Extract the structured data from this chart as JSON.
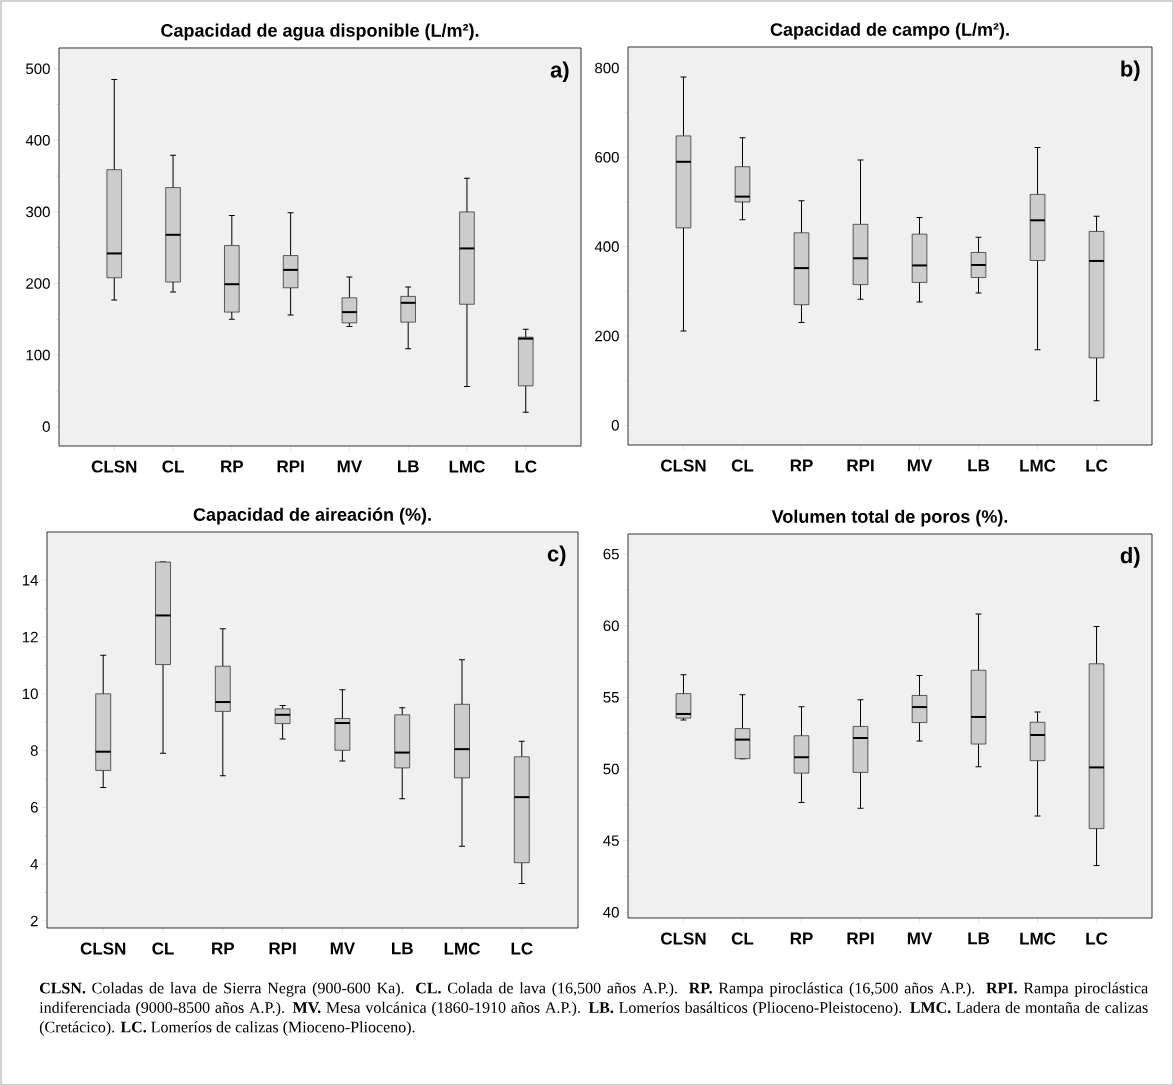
{
  "chart_data": [
    {
      "type": "box",
      "title": "Capacidad de agua disponible (L/m²).",
      "annotations": [
        "a)"
      ],
      "categories": [
        "CLSN",
        "CL",
        "RP",
        "RPI",
        "MV",
        "LB",
        "LMC",
        "LC"
      ],
      "ylim": [
        -27,
        529
      ],
      "yticks": [
        0,
        100,
        200,
        300,
        400,
        500
      ],
      "series": [
        {
          "color": "#cccccc",
          "boxes": [
            {
              "low": 177,
              "q1": 208,
              "median": 242,
              "q3": 359,
              "high": 485
            },
            {
              "low": 188,
              "q1": 202,
              "median": 268,
              "q3": 334,
              "high": 379
            },
            {
              "low": 150,
              "q1": 160,
              "median": 199,
              "q3": 253,
              "high": 295
            },
            {
              "low": 156,
              "q1": 194,
              "median": 219,
              "q3": 239,
              "high": 299
            },
            {
              "low": 140,
              "q1": 145,
              "median": 160,
              "q3": 180,
              "high": 209
            },
            {
              "low": 109,
              "q1": 146,
              "median": 173,
              "q3": 182,
              "high": 195
            },
            {
              "low": 56,
              "q1": 171,
              "median": 249,
              "q3": 300,
              "high": 347
            },
            {
              "low": 20,
              "q1": 57,
              "median": 123,
              "q3": 125,
              "high": 136
            }
          ]
        }
      ]
    },
    {
      "type": "box",
      "title": "Capacidad de campo (L/m²).",
      "annotations": [
        "b)"
      ],
      "categories": [
        "CLSN",
        "CL",
        "RP",
        "RPI",
        "MV",
        "LB",
        "LMC",
        "LC"
      ],
      "ylim": [
        -44,
        847
      ],
      "yticks": [
        0,
        200,
        400,
        600,
        800
      ],
      "series": [
        {
          "color": "#cccccc",
          "boxes": [
            {
              "low": 211,
              "q1": 442,
              "median": 590,
              "q3": 648,
              "high": 780
            },
            {
              "low": 460,
              "q1": 500,
              "median": 512,
              "q3": 579,
              "high": 644
            },
            {
              "low": 230,
              "q1": 270,
              "median": 352,
              "q3": 431,
              "high": 503
            },
            {
              "low": 282,
              "q1": 315,
              "median": 374,
              "q3": 450,
              "high": 594
            },
            {
              "low": 276,
              "q1": 320,
              "median": 358,
              "q3": 428,
              "high": 465
            },
            {
              "low": 296,
              "q1": 331,
              "median": 359,
              "q3": 387,
              "high": 421
            },
            {
              "low": 169,
              "q1": 369,
              "median": 459,
              "q3": 517,
              "high": 622
            },
            {
              "low": 55,
              "q1": 151,
              "median": 368,
              "q3": 434,
              "high": 468
            }
          ]
        }
      ]
    },
    {
      "type": "box",
      "title": "Capacidad de aireación (%).",
      "annotations": [
        "c)"
      ],
      "categories": [
        "CLSN",
        "CL",
        "RP",
        "RPI",
        "MV",
        "LB",
        "LMC",
        "LC"
      ],
      "ylim": [
        1.75,
        15.7
      ],
      "yticks": [
        2,
        4,
        6,
        8,
        10,
        12,
        14
      ],
      "series": [
        {
          "color": "#cccccc",
          "boxes": [
            {
              "low": 6.7,
              "q1": 7.3,
              "median": 7.96,
              "q3": 10.0,
              "high": 11.36
            },
            {
              "low": 7.91,
              "q1": 11.03,
              "median": 12.76,
              "q3": 14.64,
              "high": 14.64
            },
            {
              "low": 7.11,
              "q1": 9.38,
              "median": 9.71,
              "q3": 10.97,
              "high": 12.29
            },
            {
              "low": 8.41,
              "q1": 8.95,
              "median": 9.26,
              "q3": 9.47,
              "high": 9.59
            },
            {
              "low": 7.63,
              "q1": 8.01,
              "median": 8.97,
              "q3": 9.13,
              "high": 10.14
            },
            {
              "low": 6.3,
              "q1": 7.39,
              "median": 7.93,
              "q3": 9.26,
              "high": 9.51
            },
            {
              "low": 4.63,
              "q1": 7.04,
              "median": 8.05,
              "q3": 9.63,
              "high": 11.2
            },
            {
              "low": 3.32,
              "q1": 4.05,
              "median": 6.36,
              "q3": 7.78,
              "high": 8.33
            }
          ]
        }
      ]
    },
    {
      "type": "box",
      "title": "Volumen total de poros (%).",
      "annotations": [
        "d)",
        "**CLSN.** Coladas de lava de Sierra Negra (900-600 Ka). **CL.** Colada de lava (16,500 años A.P.). **RP.** Rampa piroclástica (16,500 años A.P.). **RPI.** Rampa piroclástica indiferenciada (9000-8500 años A.P.). **MV.** Mesa volcánica (1860-1910 años A.P.). **LB.** Lomeríos basálticos (Plioceno-Pleistoceno). **LMC.** Ladera de montaña de calizas (Cretácico). **LC.** Lomeríos de calizas (Mioceno-Plioceno)."
      ],
      "categories": [
        "CLSN",
        "CL",
        "RP",
        "RPI",
        "MV",
        "LB",
        "LMC",
        "LC"
      ],
      "ylim": [
        39.6,
        66.4
      ],
      "yticks": [
        40,
        45,
        50,
        55,
        60,
        65
      ],
      "series": [
        {
          "color": "#cccccc",
          "boxes": [
            {
              "low": 53.42,
              "q1": 53.55,
              "median": 53.84,
              "q3": 55.26,
              "high": 56.58
            },
            {
              "low": 50.72,
              "q1": 50.72,
              "median": 52.05,
              "q3": 52.82,
              "high": 55.18
            },
            {
              "low": 47.66,
              "q1": 49.71,
              "median": 50.82,
              "q3": 52.32,
              "high": 54.34
            },
            {
              "low": 47.26,
              "q1": 49.76,
              "median": 52.16,
              "q3": 52.97,
              "high": 54.84
            },
            {
              "low": 51.95,
              "q1": 53.24,
              "median": 54.32,
              "q3": 55.13,
              "high": 56.53
            },
            {
              "low": 50.16,
              "q1": 51.74,
              "median": 53.63,
              "q3": 56.89,
              "high": 60.82
            },
            {
              "low": 46.71,
              "q1": 50.58,
              "median": 52.37,
              "q3": 53.26,
              "high": 53.97
            },
            {
              "low": 43.26,
              "q1": 45.84,
              "median": 50.11,
              "q3": 57.34,
              "high": 59.95
            }
          ]
        }
      ]
    }
  ]
}
